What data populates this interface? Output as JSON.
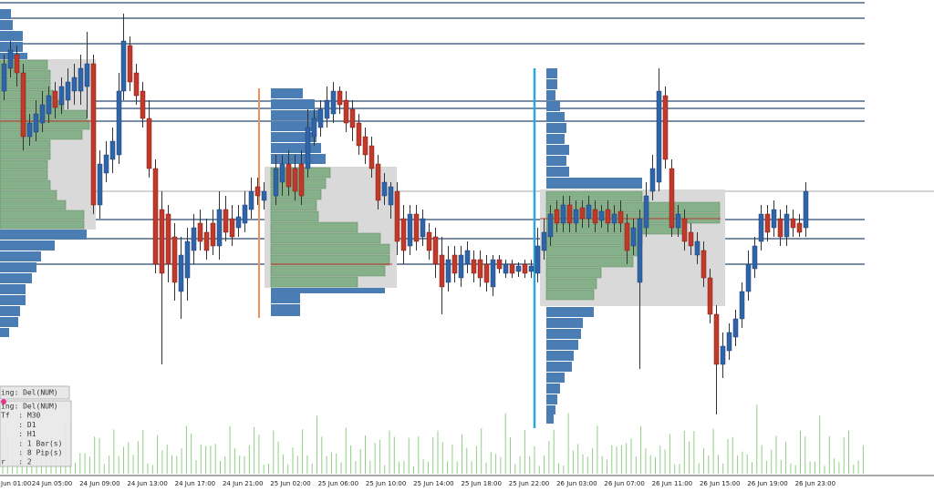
{
  "x_axis": {
    "labels": [
      "Jun 01:00",
      "24 Jun 05:00",
      "24 Jun 09:00",
      "24 Jun 13:00",
      "24 Jun 17:00",
      "24 Jun 21:00",
      "25 Jun 02:00",
      "25 Jun 06:00",
      "25 Jun 10:00",
      "25 Jun 14:00",
      "25 Jun 18:00",
      "25 Jun 22:00",
      "26 Jun 03:00",
      "26 Jun 07:00",
      "26 Jun 11:00",
      "26 Jun 15:00",
      "26 Jun 19:00",
      "26 Jun 23:00"
    ]
  },
  "info_panel": {
    "header": "ing: Del(NUM)",
    "rows": [
      "ing: Del(NUM)",
      "Tf  : M30",
      "    : D1",
      "    : H1",
      "    : 1 Bar(s)",
      "    : 8 Pip(s)",
      "r   : 2"
    ]
  }
}
